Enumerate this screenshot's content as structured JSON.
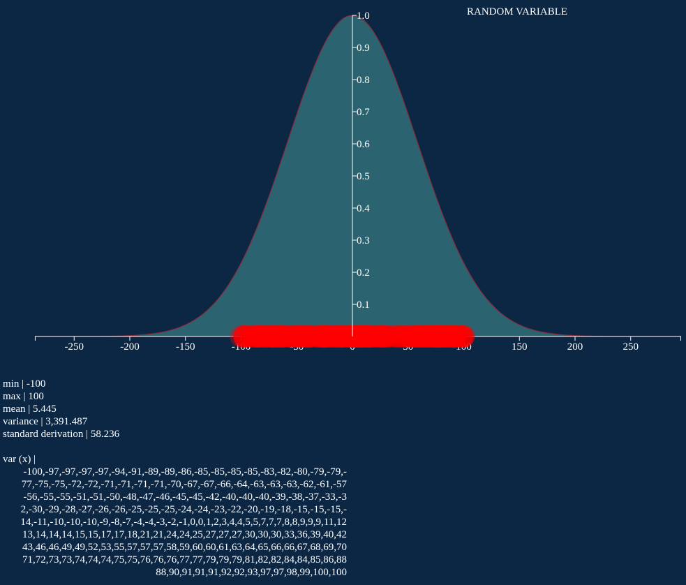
{
  "chart_data": {
    "type": "area",
    "title": "RANDOM VARIABLE",
    "xlim": [
      -285,
      295
    ],
    "ylim": [
      0,
      1.0
    ],
    "x_ticks": [
      -250,
      -200,
      -150,
      -100,
      -50,
      0,
      50,
      100,
      150,
      200,
      250
    ],
    "y_ticks": [
      0.1,
      0.2,
      0.3,
      0.4,
      0.5,
      0.6,
      0.7,
      0.8,
      0.9,
      1.0
    ],
    "curve": {
      "function": "normal_density_scaled_to_1",
      "mean": 0,
      "standard_deviation": 58.236
    },
    "fill_color": "#2b6470",
    "line_color": "#8a2a3a",
    "point_color": "#ff0000",
    "points": [
      -100,
      -97,
      -97,
      -97,
      -97,
      -94,
      -91,
      -89,
      -89,
      -86,
      -85,
      -85,
      -85,
      -85,
      -83,
      -82,
      -80,
      -79,
      -79,
      -77,
      -75,
      -75,
      -72,
      -72,
      -71,
      -71,
      -71,
      -71,
      -70,
      -67,
      -67,
      -66,
      -64,
      -63,
      -63,
      -63,
      -62,
      -61,
      -57,
      -56,
      -55,
      -55,
      -51,
      -51,
      -50,
      -48,
      -47,
      -46,
      -45,
      -45,
      -42,
      -40,
      -40,
      -40,
      -39,
      -38,
      -37,
      -33,
      -32,
      -30,
      -29,
      -28,
      -27,
      -26,
      -26,
      -25,
      -25,
      -25,
      -24,
      -24,
      -23,
      -22,
      -20,
      -19,
      -18,
      -15,
      -15,
      -15,
      -14,
      -11,
      -10,
      -10,
      -10,
      -9,
      -8,
      -7,
      -4,
      -4,
      -3,
      -2,
      -1,
      0,
      0,
      1,
      2,
      3,
      4,
      4,
      5,
      5,
      7,
      7,
      7,
      8,
      8,
      9,
      9,
      9,
      11,
      12,
      13,
      14,
      14,
      14,
      15,
      15,
      17,
      17,
      18,
      21,
      21,
      24,
      24,
      25,
      27,
      27,
      27,
      30,
      30,
      30,
      33,
      36,
      39,
      40,
      42,
      43,
      46,
      46,
      49,
      49,
      52,
      53,
      55,
      57,
      57,
      57,
      58,
      59,
      60,
      60,
      61,
      63,
      64,
      65,
      66,
      66,
      67,
      68,
      69,
      70,
      71,
      72,
      73,
      73,
      74,
      74,
      74,
      75,
      75,
      76,
      76,
      76,
      77,
      77,
      79,
      79,
      79,
      81,
      82,
      82,
      84,
      84,
      85,
      86,
      88,
      88,
      90,
      91,
      91,
      91,
      92,
      92,
      93,
      97,
      97,
      98,
      99,
      100,
      100
    ]
  },
  "stats": {
    "min": "min | -100",
    "max": "max | 100",
    "mean": "mean | 5.445",
    "variance": "variance | 3,391.487",
    "std": "standard derivation | 58.236"
  },
  "var_header": "var (x) |",
  "var_lines": [
    "-100,-97,-97,-97,-97,-94,-91,-89,-89,-86,-85,-85,-85,-85,-83,-82,-80,-79,-79,-",
    "77,-75,-75,-72,-72,-71,-71,-71,-71,-70,-67,-67,-66,-64,-63,-63,-63,-62,-61,-57",
    "-56,-55,-55,-51,-51,-50,-48,-47,-46,-45,-45,-42,-40,-40,-40,-39,-38,-37,-33,-3",
    "2,-30,-29,-28,-27,-26,-26,-25,-25,-25,-24,-24,-23,-22,-20,-19,-18,-15,-15,-15,-",
    "14,-11,-10,-10,-10,-9,-8,-7,-4,-4,-3,-2,-1,0,0,1,2,3,4,4,5,5,7,7,7,8,8,9,9,9,11,12",
    "13,14,14,14,15,15,17,17,18,21,21,24,24,25,27,27,27,30,30,30,33,36,39,40,42",
    "43,46,46,49,49,52,53,55,57,57,57,58,59,60,60,61,63,64,65,66,66,67,68,69,70",
    "71,72,73,73,74,74,74,75,75,76,76,76,77,77,79,79,79,81,82,82,84,84,85,86,88",
    "88,90,91,91,91,92,92,93,97,97,98,99,100,100"
  ]
}
